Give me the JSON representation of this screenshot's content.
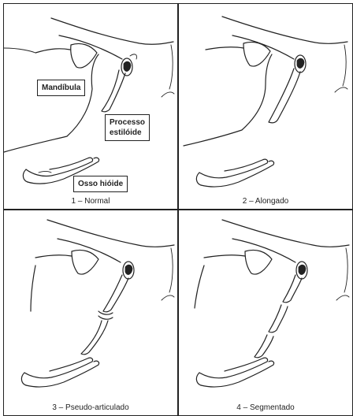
{
  "panels": [
    {
      "caption": "1 – Normal"
    },
    {
      "caption": "2 – Alongado"
    },
    {
      "caption": "3 – Pseudo-articulado"
    },
    {
      "caption": "4 – Segmentado"
    }
  ],
  "labels": {
    "mandibula": "Mandíbula",
    "processo_line1": "Processo",
    "processo_line2": "estilóide",
    "osso_hioide": "Osso hióide"
  }
}
